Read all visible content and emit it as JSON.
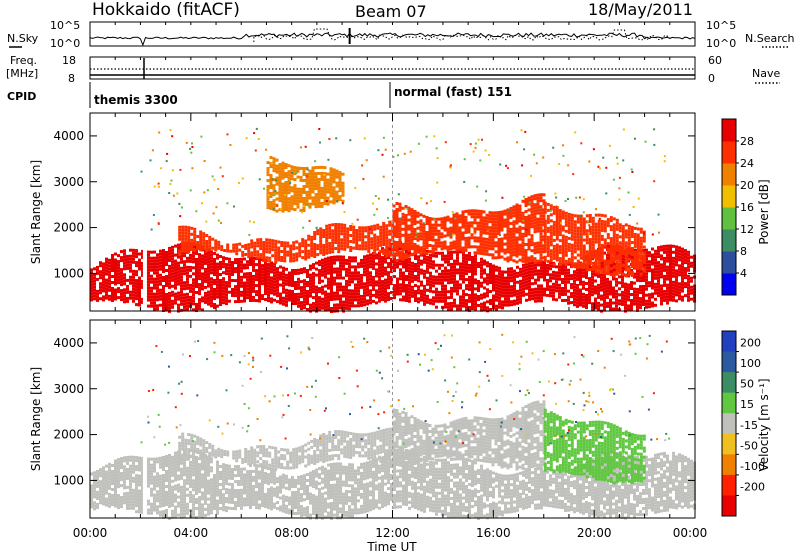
{
  "header": {
    "station": "Hokkaido (fitACF)",
    "beam": "Beam 07",
    "date": "18/May/2011"
  },
  "top_panels": {
    "nsky_label": "N.Sky",
    "nsearch_label": "N.Search",
    "freq_label_1": "Freq.",
    "freq_label_2": "[MHz]",
    "nave_label": "Nave",
    "cpid_label": "CPID",
    "nsky_ticks": [
      "10^5",
      "10^0"
    ],
    "freq_ticks": [
      "18",
      "8"
    ],
    "nave_ticks": [
      "60",
      "0"
    ],
    "cpid_modes": [
      {
        "label": "themis 3300",
        "start_hour": 0
      },
      {
        "label": "normal (fast) 151",
        "start_hour": 12
      }
    ]
  },
  "axes": {
    "x_ticks": [
      "00:00",
      "04:00",
      "08:00",
      "12:00",
      "16:00",
      "20:00",
      "00:00"
    ],
    "x_label": "Time UT",
    "y_label": "Slant Range [km]",
    "y_ticks": [
      "1000",
      "2000",
      "3000",
      "4000"
    ]
  },
  "power_colorbar": {
    "label": "Power [dB]",
    "ticks": [
      "4",
      "8",
      "12",
      "16",
      "20",
      "24",
      "28"
    ],
    "colors": [
      "#0000ee",
      "#2c4e9c",
      "#3c8c64",
      "#60c040",
      "#f0c000",
      "#f08000",
      "#ff3000",
      "#e80000"
    ]
  },
  "velocity_colorbar": {
    "label": "Velocity [m s⁻¹]",
    "ticks": [
      "200",
      "100",
      "50",
      "15",
      "-15",
      "-50",
      "-100",
      "-200"
    ],
    "colors": [
      "#2040c0",
      "#2c5aa0",
      "#3c8c64",
      "#60c840",
      "#c0c0bc",
      "#f0c020",
      "#f08000",
      "#ff2000",
      "#e80000"
    ]
  },
  "chart_data": [
    {
      "type": "heatmap",
      "title": "Power",
      "xlabel": "Time UT",
      "ylabel": "Slant Range [km]",
      "xlim": [
        0,
        24
      ],
      "ylim": [
        180,
        4500
      ],
      "colorbar_label": "Power [dB]",
      "colorbar_range": [
        0,
        30
      ],
      "echo_bands": [
        {
          "t_start": 0,
          "t_end": 24,
          "range_low_km": 300,
          "range_high_km": 1400,
          "value": 28
        },
        {
          "t_start": 3.5,
          "t_end": 12,
          "range_low_km": 1400,
          "range_high_km": 1900,
          "value": 26
        },
        {
          "t_start": 12,
          "t_end": 18,
          "range_low_km": 1400,
          "range_high_km": 2500,
          "value": 26
        },
        {
          "t_start": 18,
          "t_end": 22,
          "range_low_km": 1100,
          "range_high_km": 2300,
          "value": 24
        },
        {
          "t_start": 7,
          "t_end": 10,
          "range_low_km": 2500,
          "range_high_km": 3300,
          "value": 22
        }
      ]
    },
    {
      "type": "heatmap",
      "title": "Velocity",
      "xlabel": "Time UT",
      "ylabel": "Slant Range [km]",
      "xlim": [
        0,
        24
      ],
      "ylim": [
        180,
        4500
      ],
      "colorbar_label": "Velocity [m s⁻¹]",
      "colorbar_range": [
        -200,
        200
      ],
      "echo_bands": [
        {
          "t_start": 0,
          "t_end": 24,
          "range_low_km": 300,
          "range_high_km": 1400,
          "value": 0
        },
        {
          "t_start": 3.5,
          "t_end": 12,
          "range_low_km": 1400,
          "range_high_km": 1900,
          "value": 0
        },
        {
          "t_start": 12,
          "t_end": 18,
          "range_low_km": 1400,
          "range_high_km": 2500,
          "value": 0
        },
        {
          "t_start": 18,
          "t_end": 22,
          "range_low_km": 1100,
          "range_high_km": 2300,
          "value": 30
        }
      ]
    }
  ]
}
